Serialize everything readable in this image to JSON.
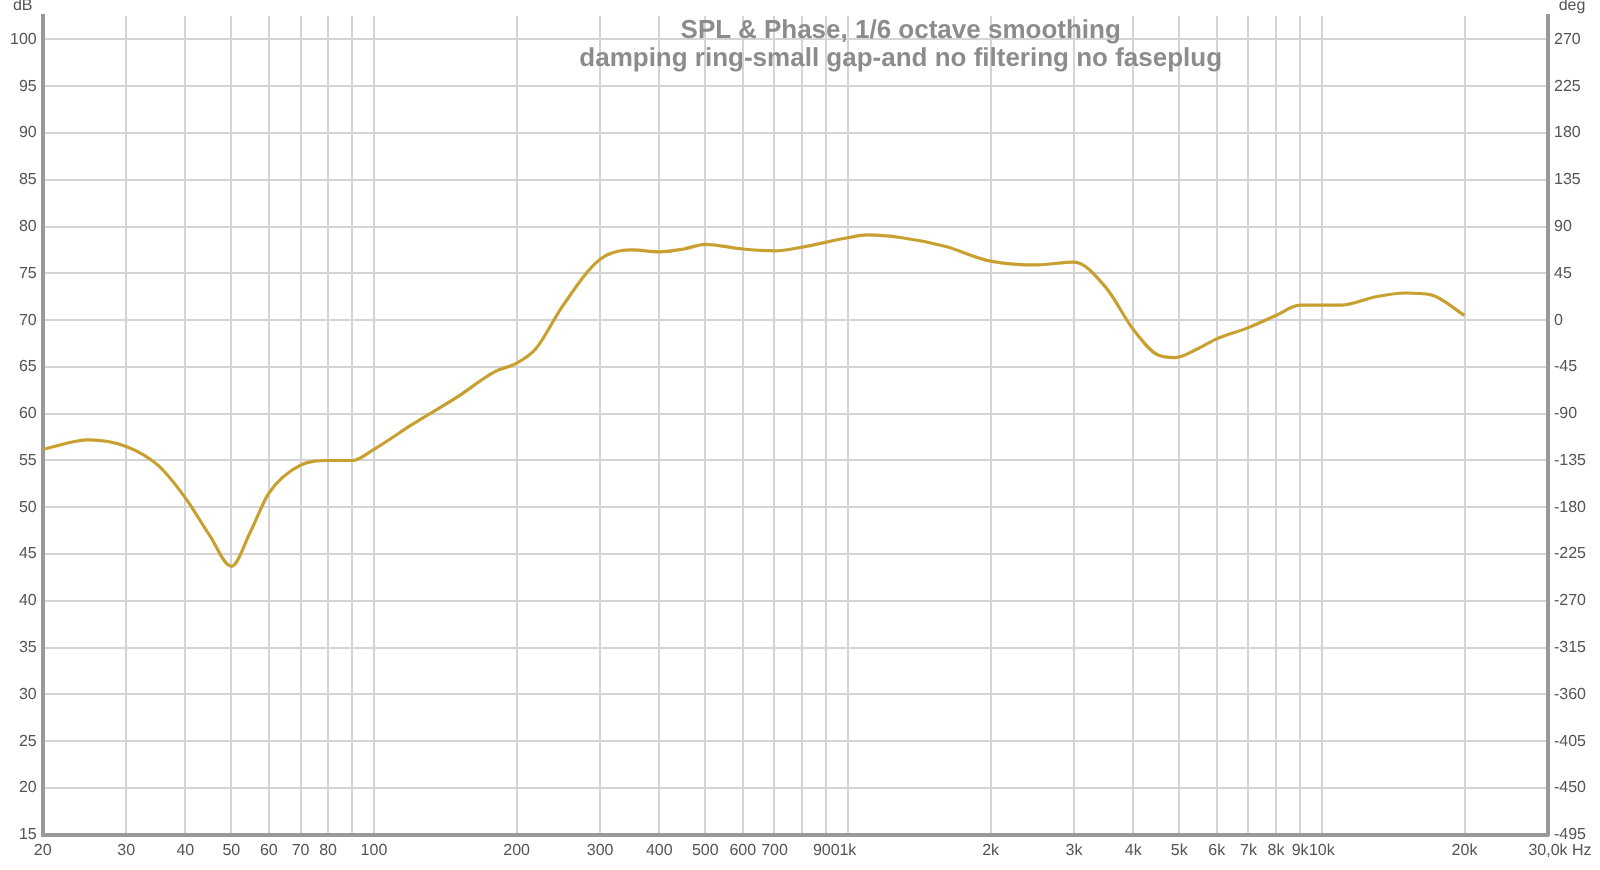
{
  "chart_data": {
    "type": "line",
    "title": "SPL & Phase, 1/6 octave smoothing",
    "subtitle": "damping ring-small gap-and no filtering no faseplug",
    "xlabel": "Hz",
    "ylabel": "dB",
    "y2label": "deg",
    "log": "x",
    "grid": true,
    "legend": false,
    "marker": "none",
    "line_style": "solid",
    "xlim": [
      20,
      30000
    ],
    "xticks": [
      20,
      30,
      40,
      50,
      60,
      70,
      80,
      {
        "value": 90,
        "label": null
      },
      100,
      200,
      300,
      400,
      500,
      600,
      700,
      {
        "value": 800,
        "label": null
      },
      900,
      {
        "value": 1000,
        "label": "1k"
      },
      {
        "value": 2000,
        "label": "2k"
      },
      {
        "value": 3000,
        "label": "3k"
      },
      {
        "value": 4000,
        "label": "4k"
      },
      {
        "value": 5000,
        "label": "5k"
      },
      {
        "value": 6000,
        "label": "6k"
      },
      {
        "value": 7000,
        "label": "7k"
      },
      {
        "value": 8000,
        "label": "8k"
      },
      {
        "value": 9000,
        "label": "9k"
      },
      {
        "value": 10000,
        "label": "10k"
      },
      {
        "value": 20000,
        "label": "20k"
      },
      {
        "value": 30000,
        "label": "30,0k"
      }
    ],
    "ylim": [
      15,
      102.5
    ],
    "yticks": [
      15,
      20,
      25,
      30,
      35,
      40,
      45,
      50,
      55,
      60,
      65,
      70,
      75,
      80,
      85,
      90,
      95,
      100
    ],
    "y2lim": [
      -495,
      292.5
    ],
    "y2ticks": [
      -495,
      -450,
      -405,
      -360,
      -315,
      -270,
      -225,
      -180,
      -135,
      -90,
      -45,
      0,
      45,
      90,
      135,
      180,
      225,
      270
    ],
    "series": [
      {
        "color": "#c8a030",
        "x": [
          20,
          25,
          30,
          35,
          40,
          45,
          50,
          55,
          60,
          70,
          80,
          90,
          100,
          120,
          150,
          180,
          200,
          220,
          250,
          300,
          350,
          400,
          450,
          500,
          600,
          700,
          800,
          1000,
          1100,
          1300,
          1600,
          2000,
          2500,
          3000,
          3500,
          4000,
          4500,
          4900,
          5500,
          6000,
          7000,
          8000,
          9000,
          10000,
          11000,
          13000,
          15000,
          17000,
          20000
        ],
        "values": [
          56.2,
          57.2,
          56.5,
          54.5,
          51,
          47,
          43.7,
          47.5,
          51.5,
          54.5,
          55,
          55,
          56.2,
          58.8,
          61.8,
          64.5,
          65.4,
          67,
          71.5,
          76.5,
          77.5,
          77.3,
          77.6,
          78.1,
          77.6,
          77.4,
          77.8,
          78.8,
          79.1,
          78.8,
          77.9,
          76.3,
          75.9,
          76.2,
          73.5,
          69,
          66.3,
          66,
          67,
          68,
          69.2,
          70.5,
          71.6,
          71.6,
          71.6,
          72.5,
          72.9,
          72.7,
          70.5
        ]
      }
    ]
  }
}
